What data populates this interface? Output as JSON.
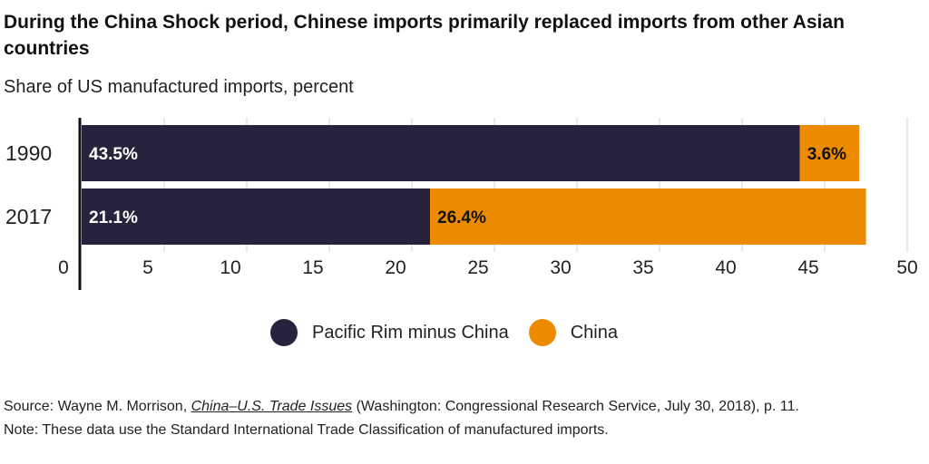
{
  "title": "During the China Shock period, Chinese imports primarily replaced imports from other Asian countries",
  "subtitle": "Share of US manufactured imports, percent",
  "colors": {
    "pacific_rim": "#28223d",
    "china": "#ec8b00",
    "grid": "#d0d0d0",
    "axis": "#111111"
  },
  "legend": [
    {
      "name": "Pacific Rim minus China",
      "color": "#28223d"
    },
    {
      "name": "China",
      "color": "#ec8b00"
    }
  ],
  "source": {
    "prefix": "Source: Wayne M. Morrison, ",
    "title": "China–U.S. Trade Issues",
    "suffix": " (Washington: Congressional Research Service, July 30, 2018), p. 11."
  },
  "note": "Note: These data use the Standard International Trade Classification of manufactured imports.",
  "chart_data": {
    "type": "bar",
    "orientation": "horizontal",
    "stacked": true,
    "title": "During the China Shock period, Chinese imports primarily replaced imports from other Asian countries",
    "subtitle": "Share of US manufactured imports, percent",
    "categories": [
      "1990",
      "2017"
    ],
    "series": [
      {
        "name": "Pacific Rim minus China",
        "values": [
          43.5,
          21.1
        ],
        "labels": [
          "43.5%",
          "21.1%"
        ],
        "color": "#28223d",
        "label_color": "#ffffff"
      },
      {
        "name": "China",
        "values": [
          3.6,
          26.4
        ],
        "labels": [
          "3.6%",
          "26.4%"
        ],
        "color": "#ec8b00",
        "label_color": "#111111"
      }
    ],
    "xlim": [
      0,
      50
    ],
    "xticks": [
      0,
      5,
      10,
      15,
      20,
      25,
      30,
      35,
      40,
      45,
      50
    ],
    "xlabel": "",
    "ylabel": "",
    "grid": true,
    "legend_position": "bottom-center"
  }
}
